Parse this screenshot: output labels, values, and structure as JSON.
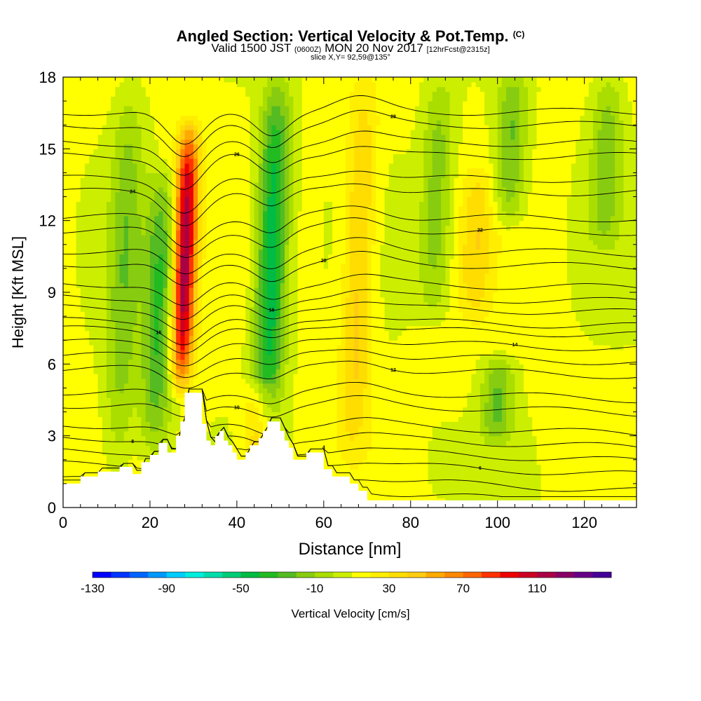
{
  "title": {
    "main": "Angled Section: Vertical Velocity & Pot.Temp.",
    "unit": "(C)",
    "valid_prefix": "Valid 1500 JST",
    "valid_zulu": "(0600Z)",
    "valid_date": "MON 20 Nov 2017",
    "forecast": "[12hrFcst@2315z]",
    "slice": "slice X,Y= 92,59@135°"
  },
  "chart_data": {
    "type": "heatmap",
    "xlabel": "Distance [nm]",
    "ylabel": "Height [Kft MSL]",
    "xlim": [
      0,
      132
    ],
    "ylim": [
      0,
      18
    ],
    "x_ticks": [
      0,
      20,
      40,
      60,
      80,
      100,
      120
    ],
    "y_ticks": [
      0,
      3,
      6,
      9,
      12,
      15,
      18
    ],
    "x_tick_labels": [
      "0",
      "20",
      "40",
      "60",
      "80",
      "100",
      "120"
    ],
    "y_tick_labels": [
      "0",
      "3",
      "6",
      "9",
      "12",
      "15",
      "18"
    ],
    "colorbar": {
      "label": "Vertical Velocity [cm/s]",
      "min": -130,
      "max": 150,
      "step": 10,
      "tick_values": [
        -130,
        -90,
        -50,
        -10,
        30,
        70,
        110
      ],
      "tick_labels": [
        "-130",
        "-90",
        "-50",
        "-10",
        "30",
        "70",
        "110"
      ],
      "colors": [
        "#0000ff",
        "#0033ff",
        "#0066ff",
        "#0099ff",
        "#00ccff",
        "#00eedd",
        "#00ddaa",
        "#00cc77",
        "#00bb44",
        "#22bb22",
        "#55bb22",
        "#88cc11",
        "#aadd00",
        "#ccee00",
        "#ffff00",
        "#ffee00",
        "#ffdd00",
        "#ffcc11",
        "#ffaa00",
        "#ff8800",
        "#ff6600",
        "#ff3300",
        "#ee0000",
        "#cc0022",
        "#aa0044",
        "#880066",
        "#660088",
        "#440099"
      ]
    },
    "velocity_features": [
      {
        "center_x": 28,
        "z_range": [
          5,
          16
        ],
        "value": 120,
        "kind": "updraft"
      },
      {
        "center_x": 22,
        "z_range": [
          2,
          14
        ],
        "value": -30,
        "kind": "downdraft"
      },
      {
        "center_x": 48,
        "z_range": [
          3,
          18
        ],
        "value": -50,
        "kind": "downdraft"
      },
      {
        "center_x": 68,
        "z_range": [
          2,
          18
        ],
        "value": 45,
        "kind": "updraft"
      },
      {
        "center_x": 45,
        "z_range": [
          2,
          5
        ],
        "value": 45,
        "kind": "updraft"
      },
      {
        "center_x": 14,
        "z_range": [
          1,
          18
        ],
        "value": -15,
        "kind": "downdraft"
      },
      {
        "center_x": 86,
        "z_range": [
          8,
          18
        ],
        "value": -15,
        "kind": "downdraft"
      },
      {
        "center_x": 103,
        "z_range": [
          12,
          18
        ],
        "value": -22,
        "kind": "downdraft"
      },
      {
        "center_x": 95,
        "z_range": [
          8,
          14
        ],
        "value": 35,
        "kind": "updraft"
      },
      {
        "center_x": 125,
        "z_range": [
          11,
          18
        ],
        "value": -15,
        "kind": "downdraft"
      },
      {
        "center_x": 100,
        "z_range": [
          3,
          6
        ],
        "value": -20,
        "kind": "downdraft"
      },
      {
        "center_x": 88,
        "z_range": [
          1,
          3
        ],
        "value": 5,
        "kind": "updraft"
      }
    ],
    "terrain": [
      [
        0,
        1
      ],
      [
        4,
        1
      ],
      [
        4,
        1.3
      ],
      [
        8,
        1.3
      ],
      [
        8,
        1.5
      ],
      [
        13,
        1.5
      ],
      [
        13,
        1.7
      ],
      [
        16,
        1.7
      ],
      [
        16,
        1.4
      ],
      [
        18,
        1.4
      ],
      [
        18,
        1.9
      ],
      [
        20,
        1.9
      ],
      [
        20,
        2.2
      ],
      [
        22,
        2.2
      ],
      [
        22,
        2.7
      ],
      [
        24,
        2.7
      ],
      [
        24,
        2.3
      ],
      [
        26,
        2.3
      ],
      [
        26,
        3
      ],
      [
        27,
        3
      ],
      [
        27,
        3.6
      ],
      [
        28,
        3.6
      ],
      [
        28,
        4.8
      ],
      [
        32,
        4.8
      ],
      [
        32,
        3.5
      ],
      [
        33,
        3.5
      ],
      [
        33,
        2.8
      ],
      [
        34,
        2.8
      ],
      [
        34,
        2.6
      ],
      [
        35,
        2.6
      ],
      [
        35,
        3
      ],
      [
        36,
        3
      ],
      [
        36,
        3.2
      ],
      [
        37,
        3.2
      ],
      [
        37,
        2.8
      ],
      [
        38,
        2.8
      ],
      [
        38,
        2.6
      ],
      [
        39,
        2.6
      ],
      [
        39,
        2.3
      ],
      [
        40,
        2.3
      ],
      [
        40,
        2
      ],
      [
        42,
        2
      ],
      [
        42,
        2.3
      ],
      [
        43,
        2.3
      ],
      [
        43,
        2.6
      ],
      [
        45,
        2.6
      ],
      [
        45,
        2.9
      ],
      [
        46,
        2.9
      ],
      [
        46,
        3.2
      ],
      [
        47,
        3.2
      ],
      [
        47,
        3.6
      ],
      [
        50,
        3.6
      ],
      [
        50,
        3.2
      ],
      [
        51,
        3.2
      ],
      [
        51,
        2.8
      ],
      [
        52,
        2.8
      ],
      [
        52,
        2.5
      ],
      [
        53,
        2.5
      ],
      [
        53,
        2
      ],
      [
        56,
        2
      ],
      [
        56,
        2.3
      ],
      [
        60,
        2.3
      ],
      [
        60,
        1.6
      ],
      [
        62,
        1.6
      ],
      [
        62,
        1.3
      ],
      [
        66,
        1.3
      ],
      [
        66,
        1
      ],
      [
        68,
        1
      ],
      [
        68,
        0.7
      ],
      [
        70,
        0.7
      ],
      [
        70,
        0.3
      ],
      [
        132,
        0.3
      ]
    ],
    "isotherm_base": [
      {
        "label": "4",
        "base_z": 0.6
      },
      {
        "label": "6",
        "base_z": 1.8
      },
      {
        "label": "8",
        "base_z": 2.9
      },
      {
        "label": "10",
        "base_z": 4.3
      },
      {
        "label": "12",
        "base_z": 5.8
      },
      {
        "label": "14",
        "base_z": 6.9
      },
      {
        "label": "16",
        "base_z": 7.8
      },
      {
        "label": "18",
        "base_z": 8.8
      },
      {
        "label": "20",
        "base_z": 10.2
      },
      {
        "label": "22",
        "base_z": 11.6
      },
      {
        "label": "24",
        "base_z": 13.2
      },
      {
        "label": "26",
        "base_z": 14.7
      },
      {
        "label": "28",
        "base_z": 16.0
      }
    ]
  }
}
